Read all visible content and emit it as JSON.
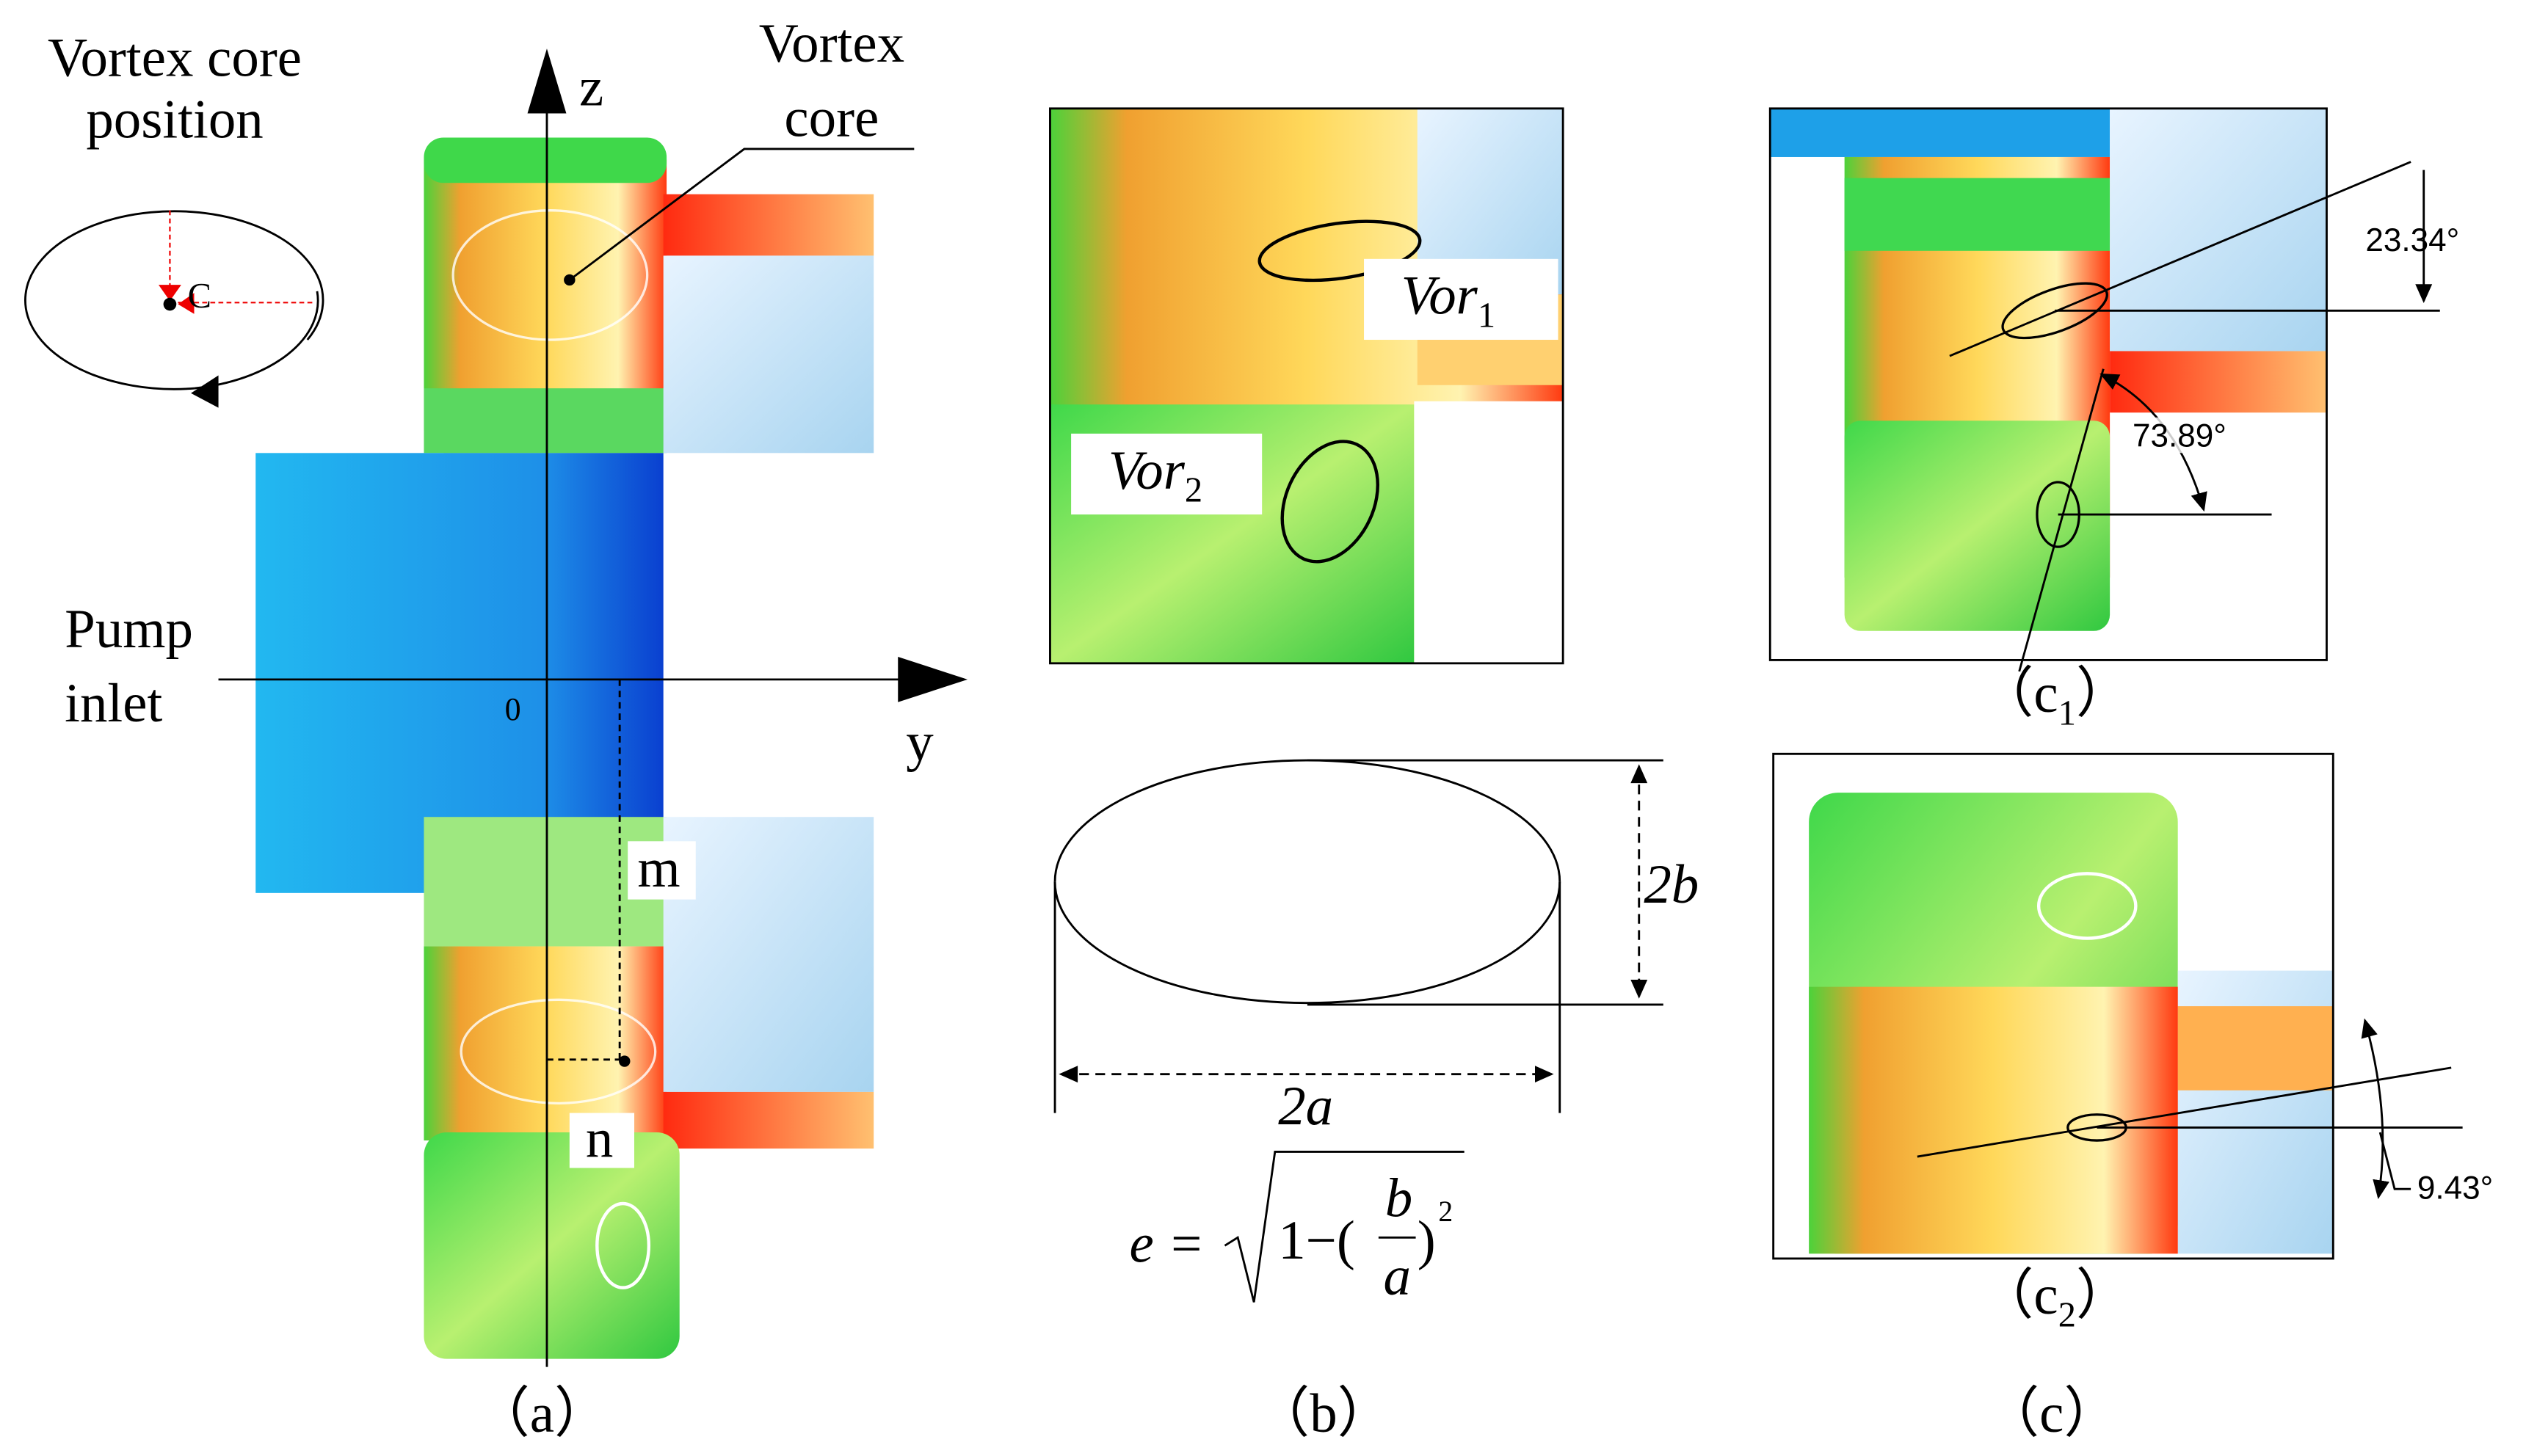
{
  "panel_a": {
    "legend_title": "Vortex core position",
    "legend_point": "C",
    "axis_z": "z",
    "axis_y": "y",
    "origin": "0",
    "inlet_label": "Pump inlet",
    "core_label": "Vortex core",
    "point_m": "m",
    "point_n": "n",
    "caption": "（a）"
  },
  "panel_b": {
    "vortex_1": {
      "text": "Vor",
      "sub": "1"
    },
    "vortex_2": {
      "text": "Vor",
      "sub": "2"
    },
    "minor_axis": "2b",
    "major_axis": "2a",
    "formula": {
      "lhs": "e =",
      "lead": "1−(",
      "num": "b",
      "den": "a",
      "close": ")",
      "power": "2"
    },
    "caption": "（b）"
  },
  "panel_c": {
    "angle_1": "23.34°",
    "angle_2": "73.89°",
    "angle_3": "9.43°",
    "caption_1": {
      "pre": "（c",
      "sub": "1",
      "post": "）"
    },
    "caption_2": {
      "pre": "（c",
      "sub": "2",
      "post": "）"
    },
    "caption": "（c）"
  }
}
